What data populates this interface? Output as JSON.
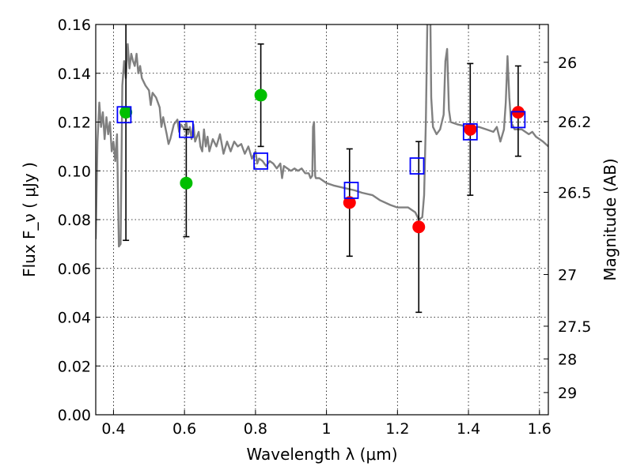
{
  "chart_data": {
    "type": "scatter",
    "title": "",
    "xlabel": "Wavelength  λ (μm)",
    "ylabel": "Flux  F_ν  ( μJy )",
    "ylabel_right": "Magnitude (AB)",
    "xlim": [
      0.35,
      1.625
    ],
    "ylim": [
      0,
      0.16
    ],
    "grid": true,
    "x_ticks": [
      0.4,
      0.6,
      0.8,
      1.0,
      1.2,
      1.4,
      1.6
    ],
    "x_tick_labels": [
      "0.4",
      "0.6",
      "0.8",
      "1",
      "1.2",
      "1.4",
      "1.6"
    ],
    "y_ticks": [
      0,
      0.02,
      0.04,
      0.06,
      0.08,
      0.1,
      0.12,
      0.14,
      0.16
    ],
    "y_tick_labels": [
      "0.00",
      "0.02",
      "0.04",
      "0.06",
      "0.08",
      "0.10",
      "0.12",
      "0.14",
      "0.16"
    ],
    "right_ticks": [
      {
        "label": "26",
        "flux": 0.1445
      },
      {
        "label": "26.2",
        "flux": 0.1202
      },
      {
        "label": "26.5",
        "flux": 0.0912
      },
      {
        "label": "27",
        "flux": 0.0575
      },
      {
        "label": "27.5",
        "flux": 0.0363
      },
      {
        "label": "28",
        "flux": 0.0229
      },
      {
        "label": "29",
        "flux": 0.0091
      }
    ],
    "colors": {
      "model": "#808080",
      "green": "#00bf00",
      "red": "#ff0000",
      "square": "#0000ff",
      "errorbar": "#000000"
    },
    "series": [
      {
        "kind": "line",
        "points": [
          [
            0.35,
            0.072
          ],
          [
            0.355,
            0.112
          ],
          [
            0.36,
            0.128
          ],
          [
            0.365,
            0.118
          ],
          [
            0.37,
            0.124
          ],
          [
            0.375,
            0.113
          ],
          [
            0.38,
            0.122
          ],
          [
            0.385,
            0.115
          ],
          [
            0.39,
            0.12
          ],
          [
            0.395,
            0.108
          ],
          [
            0.4,
            0.112
          ],
          [
            0.405,
            0.104
          ],
          [
            0.41,
            0.115
          ],
          [
            0.415,
            0.069
          ],
          [
            0.42,
            0.07
          ],
          [
            0.425,
            0.135
          ],
          [
            0.43,
            0.145
          ],
          [
            0.435,
            0.138
          ],
          [
            0.44,
            0.152
          ],
          [
            0.445,
            0.142
          ],
          [
            0.45,
            0.148
          ],
          [
            0.455,
            0.145
          ],
          [
            0.46,
            0.143
          ],
          [
            0.465,
            0.148
          ],
          [
            0.47,
            0.14
          ],
          [
            0.475,
            0.143
          ],
          [
            0.48,
            0.138
          ],
          [
            0.49,
            0.135
          ],
          [
            0.5,
            0.133
          ],
          [
            0.505,
            0.127
          ],
          [
            0.51,
            0.132
          ],
          [
            0.52,
            0.13
          ],
          [
            0.53,
            0.126
          ],
          [
            0.535,
            0.118
          ],
          [
            0.54,
            0.122
          ],
          [
            0.55,
            0.115
          ],
          [
            0.555,
            0.111
          ],
          [
            0.56,
            0.113
          ],
          [
            0.57,
            0.119
          ],
          [
            0.58,
            0.121
          ],
          [
            0.585,
            0.116
          ],
          [
            0.59,
            0.119
          ],
          [
            0.6,
            0.117
          ],
          [
            0.605,
            0.12
          ],
          [
            0.61,
            0.115
          ],
          [
            0.615,
            0.118
          ],
          [
            0.62,
            0.113
          ],
          [
            0.625,
            0.119
          ],
          [
            0.63,
            0.112
          ],
          [
            0.64,
            0.116
          ],
          [
            0.645,
            0.11
          ],
          [
            0.65,
            0.108
          ],
          [
            0.655,
            0.117
          ],
          [
            0.66,
            0.11
          ],
          [
            0.665,
            0.114
          ],
          [
            0.67,
            0.108
          ],
          [
            0.68,
            0.113
          ],
          [
            0.69,
            0.11
          ],
          [
            0.7,
            0.115
          ],
          [
            0.71,
            0.107
          ],
          [
            0.72,
            0.112
          ],
          [
            0.73,
            0.108
          ],
          [
            0.74,
            0.112
          ],
          [
            0.75,
            0.11
          ],
          [
            0.76,
            0.111
          ],
          [
            0.77,
            0.107
          ],
          [
            0.78,
            0.11
          ],
          [
            0.79,
            0.105
          ],
          [
            0.8,
            0.108
          ],
          [
            0.805,
            0.103
          ],
          [
            0.81,
            0.105
          ],
          [
            0.82,
            0.104
          ],
          [
            0.83,
            0.102
          ],
          [
            0.84,
            0.104
          ],
          [
            0.85,
            0.103
          ],
          [
            0.86,
            0.101
          ],
          [
            0.87,
            0.103
          ],
          [
            0.875,
            0.097
          ],
          [
            0.88,
            0.102
          ],
          [
            0.89,
            0.101
          ],
          [
            0.9,
            0.1
          ],
          [
            0.91,
            0.101
          ],
          [
            0.92,
            0.1
          ],
          [
            0.93,
            0.101
          ],
          [
            0.94,
            0.099
          ],
          [
            0.95,
            0.099
          ],
          [
            0.955,
            0.097
          ],
          [
            0.96,
            0.098
          ],
          [
            0.962,
            0.118
          ],
          [
            0.965,
            0.12
          ],
          [
            0.968,
            0.098
          ],
          [
            0.97,
            0.097
          ],
          [
            0.98,
            0.097
          ],
          [
            1.0,
            0.095
          ],
          [
            1.02,
            0.094
          ],
          [
            1.05,
            0.093
          ],
          [
            1.08,
            0.092
          ],
          [
            1.1,
            0.091
          ],
          [
            1.13,
            0.09
          ],
          [
            1.15,
            0.088
          ],
          [
            1.18,
            0.086
          ],
          [
            1.2,
            0.085
          ],
          [
            1.23,
            0.085
          ],
          [
            1.25,
            0.083
          ],
          [
            1.26,
            0.08
          ],
          [
            1.27,
            0.081
          ],
          [
            1.275,
            0.09
          ],
          [
            1.28,
            0.12
          ],
          [
            1.285,
            0.17
          ],
          [
            1.29,
            0.2
          ],
          [
            1.295,
            0.13
          ],
          [
            1.3,
            0.118
          ],
          [
            1.31,
            0.115
          ],
          [
            1.32,
            0.117
          ],
          [
            1.33,
            0.123
          ],
          [
            1.335,
            0.145
          ],
          [
            1.34,
            0.15
          ],
          [
            1.345,
            0.125
          ],
          [
            1.35,
            0.12
          ],
          [
            1.37,
            0.119
          ],
          [
            1.4,
            0.118
          ],
          [
            1.43,
            0.118
          ],
          [
            1.45,
            0.117
          ],
          [
            1.47,
            0.116
          ],
          [
            1.48,
            0.118
          ],
          [
            1.49,
            0.112
          ],
          [
            1.5,
            0.117
          ],
          [
            1.505,
            0.128
          ],
          [
            1.51,
            0.147
          ],
          [
            1.515,
            0.13
          ],
          [
            1.52,
            0.12
          ],
          [
            1.53,
            0.117
          ],
          [
            1.55,
            0.117
          ],
          [
            1.57,
            0.115
          ],
          [
            1.58,
            0.116
          ],
          [
            1.59,
            0.114
          ],
          [
            1.6,
            0.113
          ],
          [
            1.61,
            0.112
          ],
          [
            1.625,
            0.11
          ]
        ]
      },
      {
        "kind": "green-points",
        "points": [
          {
            "x": 0.435,
            "y": 0.124,
            "yerr_low": 0.0715,
            "yerr_high": 0.165
          },
          {
            "x": 0.605,
            "y": 0.095,
            "yerr_low": 0.073,
            "yerr_high": 0.117
          },
          {
            "x": 0.815,
            "y": 0.131,
            "yerr_low": 0.11,
            "yerr_high": 0.152
          }
        ]
      },
      {
        "kind": "red-points",
        "points": [
          {
            "x": 1.065,
            "y": 0.087,
            "yerr_low": 0.065,
            "yerr_high": 0.109
          },
          {
            "x": 1.26,
            "y": 0.077,
            "yerr_low": 0.042,
            "yerr_high": 0.112
          },
          {
            "x": 1.405,
            "y": 0.117,
            "yerr_low": 0.09,
            "yerr_high": 0.144
          },
          {
            "x": 1.54,
            "y": 0.124,
            "yerr_low": 0.106,
            "yerr_high": 0.143
          }
        ]
      },
      {
        "kind": "model-squares",
        "points": [
          {
            "x": 0.43,
            "y": 0.123
          },
          {
            "x": 0.605,
            "y": 0.117
          },
          {
            "x": 0.815,
            "y": 0.104
          },
          {
            "x": 1.07,
            "y": 0.092
          },
          {
            "x": 1.255,
            "y": 0.102
          },
          {
            "x": 1.405,
            "y": 0.116
          },
          {
            "x": 1.54,
            "y": 0.121
          }
        ]
      }
    ]
  }
}
